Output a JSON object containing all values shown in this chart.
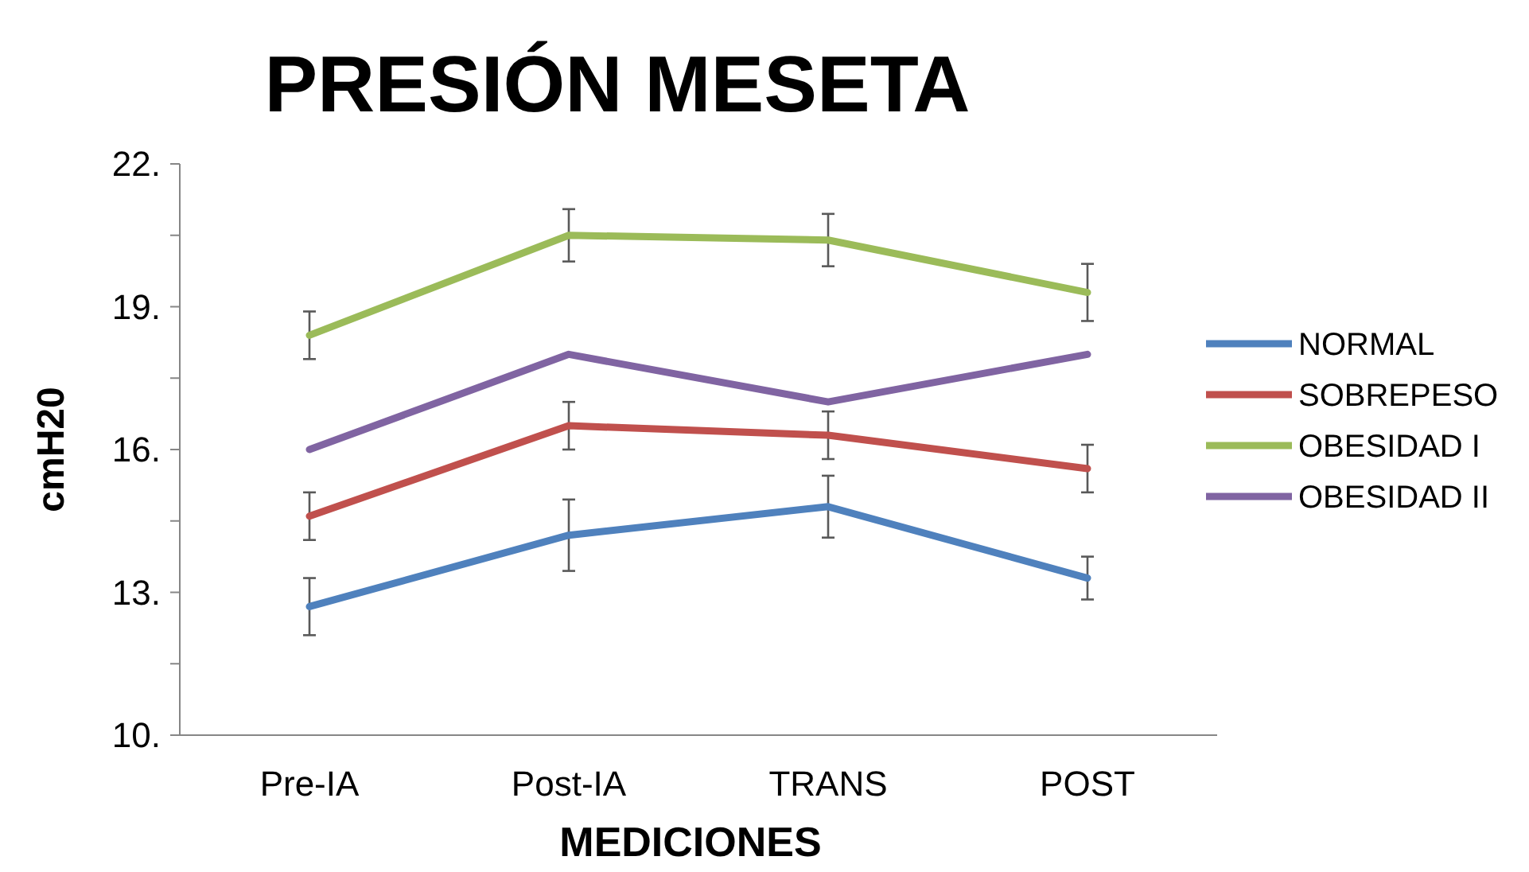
{
  "chart_data": {
    "type": "line",
    "title": "PRESIÓN MESETA",
    "xlabel": "MEDICIONES",
    "ylabel": "cmH20",
    "categories": [
      "Pre-IA",
      "Post-IA",
      "TRANS",
      "POST"
    ],
    "ylim": [
      10,
      22
    ],
    "yticks": [
      {
        "value": 10,
        "label": "10."
      },
      {
        "value": 11.5,
        "label": null
      },
      {
        "value": 13,
        "label": "13."
      },
      {
        "value": 14.5,
        "label": null
      },
      {
        "value": 16,
        "label": "16."
      },
      {
        "value": 17.5,
        "label": null
      },
      {
        "value": 19,
        "label": "19."
      },
      {
        "value": 20.5,
        "label": null
      },
      {
        "value": 22,
        "label": "22."
      }
    ],
    "grid": false,
    "legend": "right",
    "marker": "none",
    "line_style": "solid",
    "series": [
      {
        "name": "NORMAL",
        "color": "#4f81bd",
        "values": [
          12.7,
          14.2,
          14.8,
          13.3
        ],
        "errors": [
          0.6,
          0.75,
          0.65,
          0.45
        ]
      },
      {
        "name": "SOBREPESO",
        "color": "#c0504d",
        "values": [
          14.6,
          16.5,
          16.3,
          15.6
        ],
        "errors": [
          0.5,
          0.5,
          0.5,
          0.5
        ]
      },
      {
        "name": "OBESIDAD I",
        "color": "#9bbb59",
        "values": [
          18.4,
          20.5,
          20.4,
          19.3
        ],
        "errors": [
          0.5,
          0.55,
          0.55,
          0.6
        ]
      },
      {
        "name": "OBESIDAD II",
        "color": "#8064a2",
        "values": [
          16.0,
          18.0,
          17.0,
          18.0
        ]
      }
    ]
  }
}
